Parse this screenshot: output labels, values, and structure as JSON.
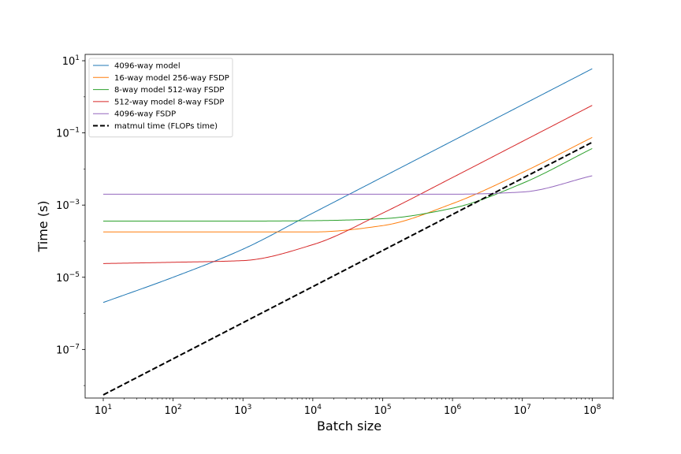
{
  "chart_data": {
    "type": "line",
    "title": "",
    "xlabel": "Batch size",
    "ylabel": "Time (s)",
    "xscale": "log",
    "yscale": "log",
    "xlim": [
      5.5,
      200000000
    ],
    "ylim": [
      4.5e-09,
      15
    ],
    "grid": false,
    "legend_position": "upper-left",
    "x_tick_exponents": [
      1,
      2,
      3,
      4,
      5,
      6,
      7,
      8
    ],
    "y_tick_exponents": [
      1,
      -1,
      -3,
      -5,
      -7
    ],
    "x": [
      10,
      100,
      1000,
      10000,
      100000,
      1000000,
      10000000,
      100000000
    ],
    "series": [
      {
        "name": "4096-way model",
        "color": "#1f77b4",
        "dash": "solid",
        "values": [
          2e-06,
          1e-05,
          6e-05,
          0.0006,
          0.006,
          0.06,
          0.6,
          6
        ]
      },
      {
        "name": "16-way model 256-way FSDP",
        "color": "#ff7f0e",
        "dash": "solid",
        "values": [
          0.00018,
          0.00018,
          0.00018,
          0.00018,
          0.00027,
          0.0011,
          0.008,
          0.075
        ]
      },
      {
        "name": "8-way model 512-way FSDP",
        "color": "#2ca02c",
        "dash": "solid",
        "values": [
          0.00036,
          0.00036,
          0.00036,
          0.00037,
          0.00042,
          0.00082,
          0.004,
          0.037
        ]
      },
      {
        "name": "512-way model 8-way FSDP",
        "color": "#d62728",
        "dash": "solid",
        "values": [
          2.4e-05,
          2.6e-05,
          2.9e-05,
          8e-05,
          0.0006,
          0.0058,
          0.058,
          0.58
        ]
      },
      {
        "name": "4096-way FSDP",
        "color": "#9467bd",
        "dash": "solid",
        "values": [
          0.002,
          0.002,
          0.002,
          0.002,
          0.002,
          0.002,
          0.0023,
          0.0065
        ]
      },
      {
        "name": "matmul time (FLOPs time)",
        "color": "#000000",
        "dash": "dashed",
        "values": [
          5.5e-09,
          5.5e-08,
          5.5e-07,
          5.5e-06,
          5.5e-05,
          0.00055,
          0.0055,
          0.055
        ]
      }
    ]
  }
}
